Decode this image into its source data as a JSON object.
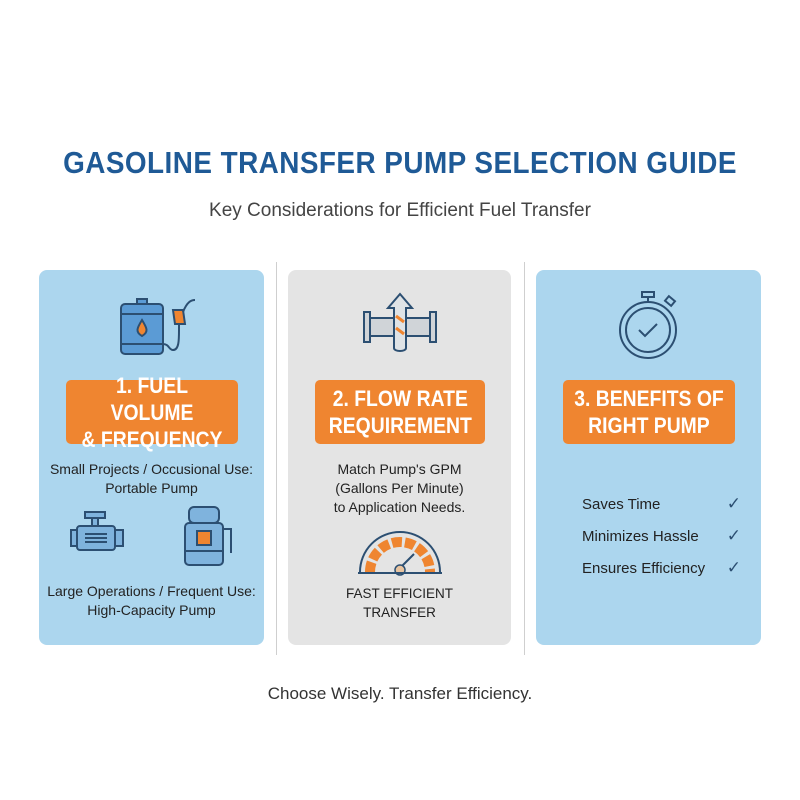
{
  "header": {
    "title": "GASOLINE TRANSFER PUMP SELECTION GUIDE",
    "subtitle": "Key Considerations for Efficient Fuel Transfer"
  },
  "cards": [
    {
      "heading": "1. FUEL VOLUME\n& FREQUENCY",
      "icon": "fuel-barrel-nozzle-icon",
      "small_text": "Small Projects / Occusional Use:\nPortable Pump",
      "large_text": "Large Operations / Frequent Use:\nHigh-Capacity Pump",
      "icons_secondary": [
        "portable-pump-icon",
        "high-capacity-pump-icon"
      ],
      "background": "#acd6ee"
    },
    {
      "heading": "2. FLOW RATE\nREQUIREMENT",
      "icon": "pipe-flow-arrow-icon",
      "text": "Match Pump's GPM\n(Gallons Per Minute)\nto Application Needs.",
      "gauge_icon": "speed-gauge-icon",
      "gauge_label": "FAST EFFICIENT\nTRANSFER",
      "background": "#e4e4e4"
    },
    {
      "heading": "3. BENEFITS OF\nRIGHT PUMP",
      "icon": "stopwatch-check-icon",
      "benefits": [
        "Saves Time",
        "Minimizes Hassle",
        "Ensures Efficiency"
      ],
      "check_glyph": "✓",
      "background": "#acd6ee"
    }
  ],
  "footer": "Choose Wisely. Transfer Efficiency.",
  "colors": {
    "title": "#1f5a96",
    "accent": "#ef8530",
    "icon_stroke": "#2c4f72"
  }
}
